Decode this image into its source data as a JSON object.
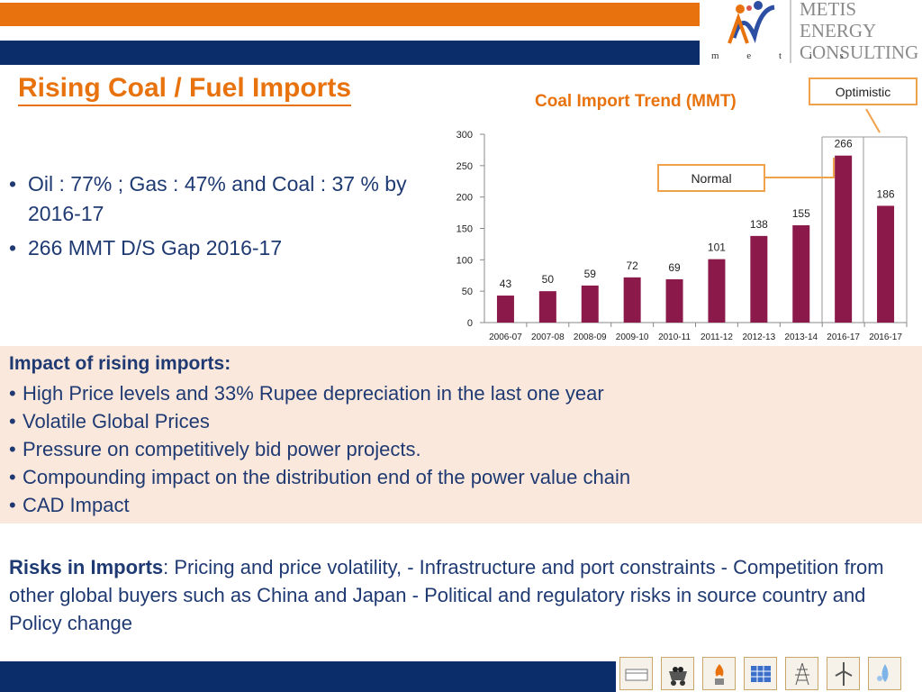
{
  "header": {
    "logo_lines": [
      "METIS",
      "ENERGY",
      "CONSULTING"
    ],
    "logo_subtext": "m e t i s"
  },
  "title": "Rising Coal / Fuel Imports",
  "bullets": [
    "Oil : 77% ; Gas : 47% and Coal : 37 % by 2016-17",
    "266 MMT D/S Gap 2016-17"
  ],
  "callouts": {
    "optimistic": "Optimistic",
    "normal": "Normal"
  },
  "chart_data": {
    "type": "bar",
    "title": "Coal Import Trend (MMT)",
    "categories": [
      "2006-07",
      "2007-08",
      "2008-09",
      "2009-10",
      "2010-11",
      "2011-12",
      "2012-13",
      "2013-14",
      "2016-17",
      "2016-17"
    ],
    "values": [
      43,
      50,
      59,
      72,
      69,
      101,
      138,
      155,
      266,
      186
    ],
    "ylim": [
      0,
      300
    ],
    "yticks": [
      0,
      50,
      100,
      150,
      200,
      250,
      300
    ],
    "bar_color": "#8b1a4a",
    "xlabel": "",
    "ylabel": ""
  },
  "impact": {
    "heading": "Impact of rising imports:",
    "items": [
      "High Price levels and 33% Rupee depreciation in the last one year",
      "Volatile Global Prices",
      "Pressure on competitively bid power projects.",
      "Compounding impact on the distribution end of the power value chain",
      "CAD Impact"
    ]
  },
  "risks": {
    "label": "Risks in Imports",
    "text": ": Pricing and price volatility, - Infrastructure and port constraints - Competition from other global buyers such as China and Japan - Political and regulatory  risks in source country and Policy change"
  },
  "footer_icons": [
    "oil-rig-icon",
    "coal-cart-icon",
    "gas-icon",
    "solar-panel-icon",
    "transmission-tower-icon",
    "wind-turbine-icon",
    "water-drop-icon"
  ],
  "colors": {
    "orange": "#e8730e",
    "navy": "#0b2e6b",
    "text_blue": "#1f3a72",
    "impact_bg": "#fbe8dd"
  }
}
